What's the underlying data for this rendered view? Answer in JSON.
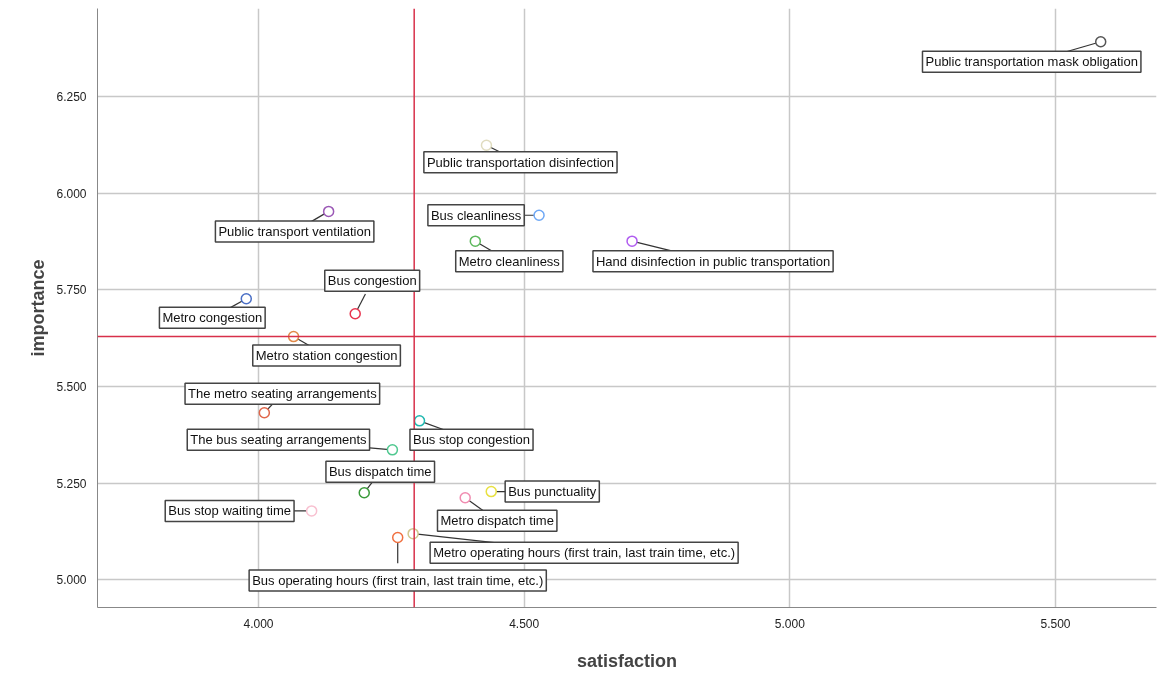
{
  "chart_data": {
    "type": "scatter",
    "xlabel": "satisfaction",
    "ylabel": "importance",
    "marker": "circle",
    "grid": true,
    "xlim": [
      3.697,
      5.69
    ],
    "ylim": [
      4.928,
      6.478
    ],
    "xticks": [
      {
        "value": 4.0,
        "label": "4.000"
      },
      {
        "value": 4.5,
        "label": "4.500"
      },
      {
        "value": 5.0,
        "label": "5.000"
      },
      {
        "value": 5.5,
        "label": "5.500"
      }
    ],
    "yticks": [
      {
        "value": 5.0,
        "label": "5.000"
      },
      {
        "value": 5.25,
        "label": "5.250"
      },
      {
        "value": 5.5,
        "label": "5.500"
      },
      {
        "value": 5.75,
        "label": "5.750"
      },
      {
        "value": 6.0,
        "label": "6.000"
      },
      {
        "value": 6.25,
        "label": "6.250"
      }
    ],
    "ref_lines": [
      {
        "axis": "x",
        "value": 4.293,
        "color": "#d8304a"
      },
      {
        "axis": "y",
        "value": 5.629,
        "color": "#d8304a"
      }
    ],
    "series": [
      {
        "name": "Public transportation mask obligation",
        "color": "#555555",
        "x": [
          5.585
        ],
        "values": [
          6.392
        ]
      },
      {
        "name": "Public transportation disinfection",
        "color": "#e0dcc0",
        "x": [
          4.429
        ],
        "values": [
          6.124
        ]
      },
      {
        "name": "Public transport ventilation",
        "color": "#9b59b6",
        "x": [
          4.132
        ],
        "values": [
          5.953
        ]
      },
      {
        "name": "Bus cleanliness",
        "color": "#6fa8f5",
        "x": [
          4.528
        ],
        "values": [
          5.943
        ]
      },
      {
        "name": "Metro cleanliness",
        "color": "#5cb85c",
        "x": [
          4.408
        ],
        "values": [
          5.876
        ]
      },
      {
        "name": "Hand disinfection in public transportation",
        "color": "#b05cf0",
        "x": [
          4.703
        ],
        "values": [
          5.876
        ]
      },
      {
        "name": "Metro congestion",
        "color": "#4a6fc6",
        "x": [
          3.977
        ],
        "values": [
          5.727
        ]
      },
      {
        "name": "Bus congestion",
        "color": "#e8344e",
        "x": [
          4.182
        ],
        "values": [
          5.688
        ]
      },
      {
        "name": "Metro station congestion",
        "color": "#e08a4a",
        "x": [
          4.066
        ],
        "values": [
          5.629
        ]
      },
      {
        "name": "The metro seating arrangements",
        "color": "#e0664a",
        "x": [
          4.011
        ],
        "values": [
          5.432
        ]
      },
      {
        "name": "Bus stop congestion",
        "color": "#20b8b0",
        "x": [
          4.303
        ],
        "values": [
          5.411
        ]
      },
      {
        "name": "The bus seating arrangements",
        "color": "#50c890",
        "x": [
          4.252
        ],
        "values": [
          5.336
        ]
      },
      {
        "name": "Bus dispatch time",
        "color": "#3a9a3a",
        "x": [
          4.199
        ],
        "values": [
          5.225
        ]
      },
      {
        "name": "Bus punctuality",
        "color": "#e8e040",
        "x": [
          4.438
        ],
        "values": [
          5.228
        ]
      },
      {
        "name": "Metro dispatch time",
        "color": "#f08cb0",
        "x": [
          4.389
        ],
        "values": [
          5.212
        ]
      },
      {
        "name": "Bus stop waiting time",
        "color": "#f8c0d0",
        "x": [
          4.1
        ],
        "values": [
          5.178
        ]
      },
      {
        "name": "Metro operating hours (first train, last train time, etc.)",
        "color": "#d0c890",
        "x": [
          4.291
        ],
        "values": [
          5.119
        ]
      },
      {
        "name": "Bus operating hours (first train, last train time, etc.)",
        "color": "#f07040",
        "x": [
          4.262
        ],
        "values": [
          5.109
        ]
      }
    ]
  }
}
